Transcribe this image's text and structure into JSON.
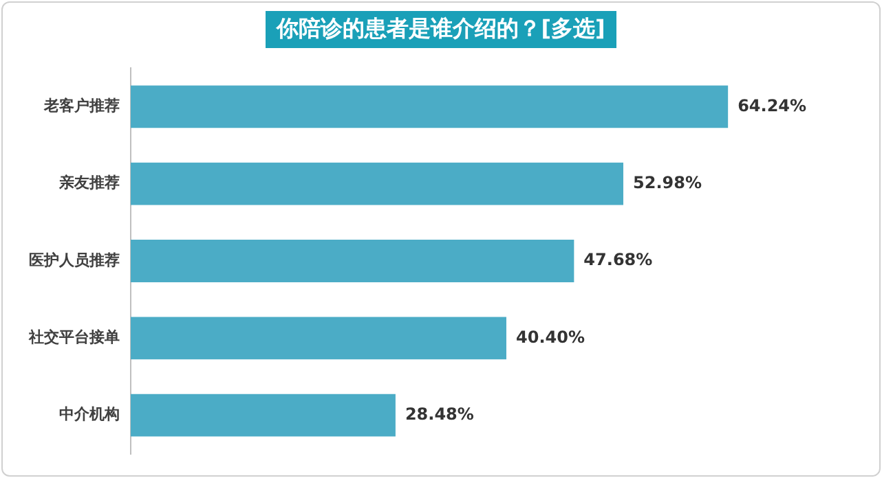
{
  "chart_data": {
    "type": "bar",
    "orientation": "horizontal",
    "title": "你陪诊的患者是谁介绍的？[多选]",
    "categories": [
      "老客户推荐",
      "亲友推荐",
      "医护人员推荐",
      "社交平台接单",
      "中介机构"
    ],
    "values": [
      64.24,
      52.98,
      47.68,
      40.4,
      28.48
    ],
    "value_labels": [
      "64.24%",
      "52.98%",
      "47.68%",
      "40.40%",
      "28.48%"
    ],
    "color": "#4bacc6",
    "grid": false,
    "legend": false
  }
}
